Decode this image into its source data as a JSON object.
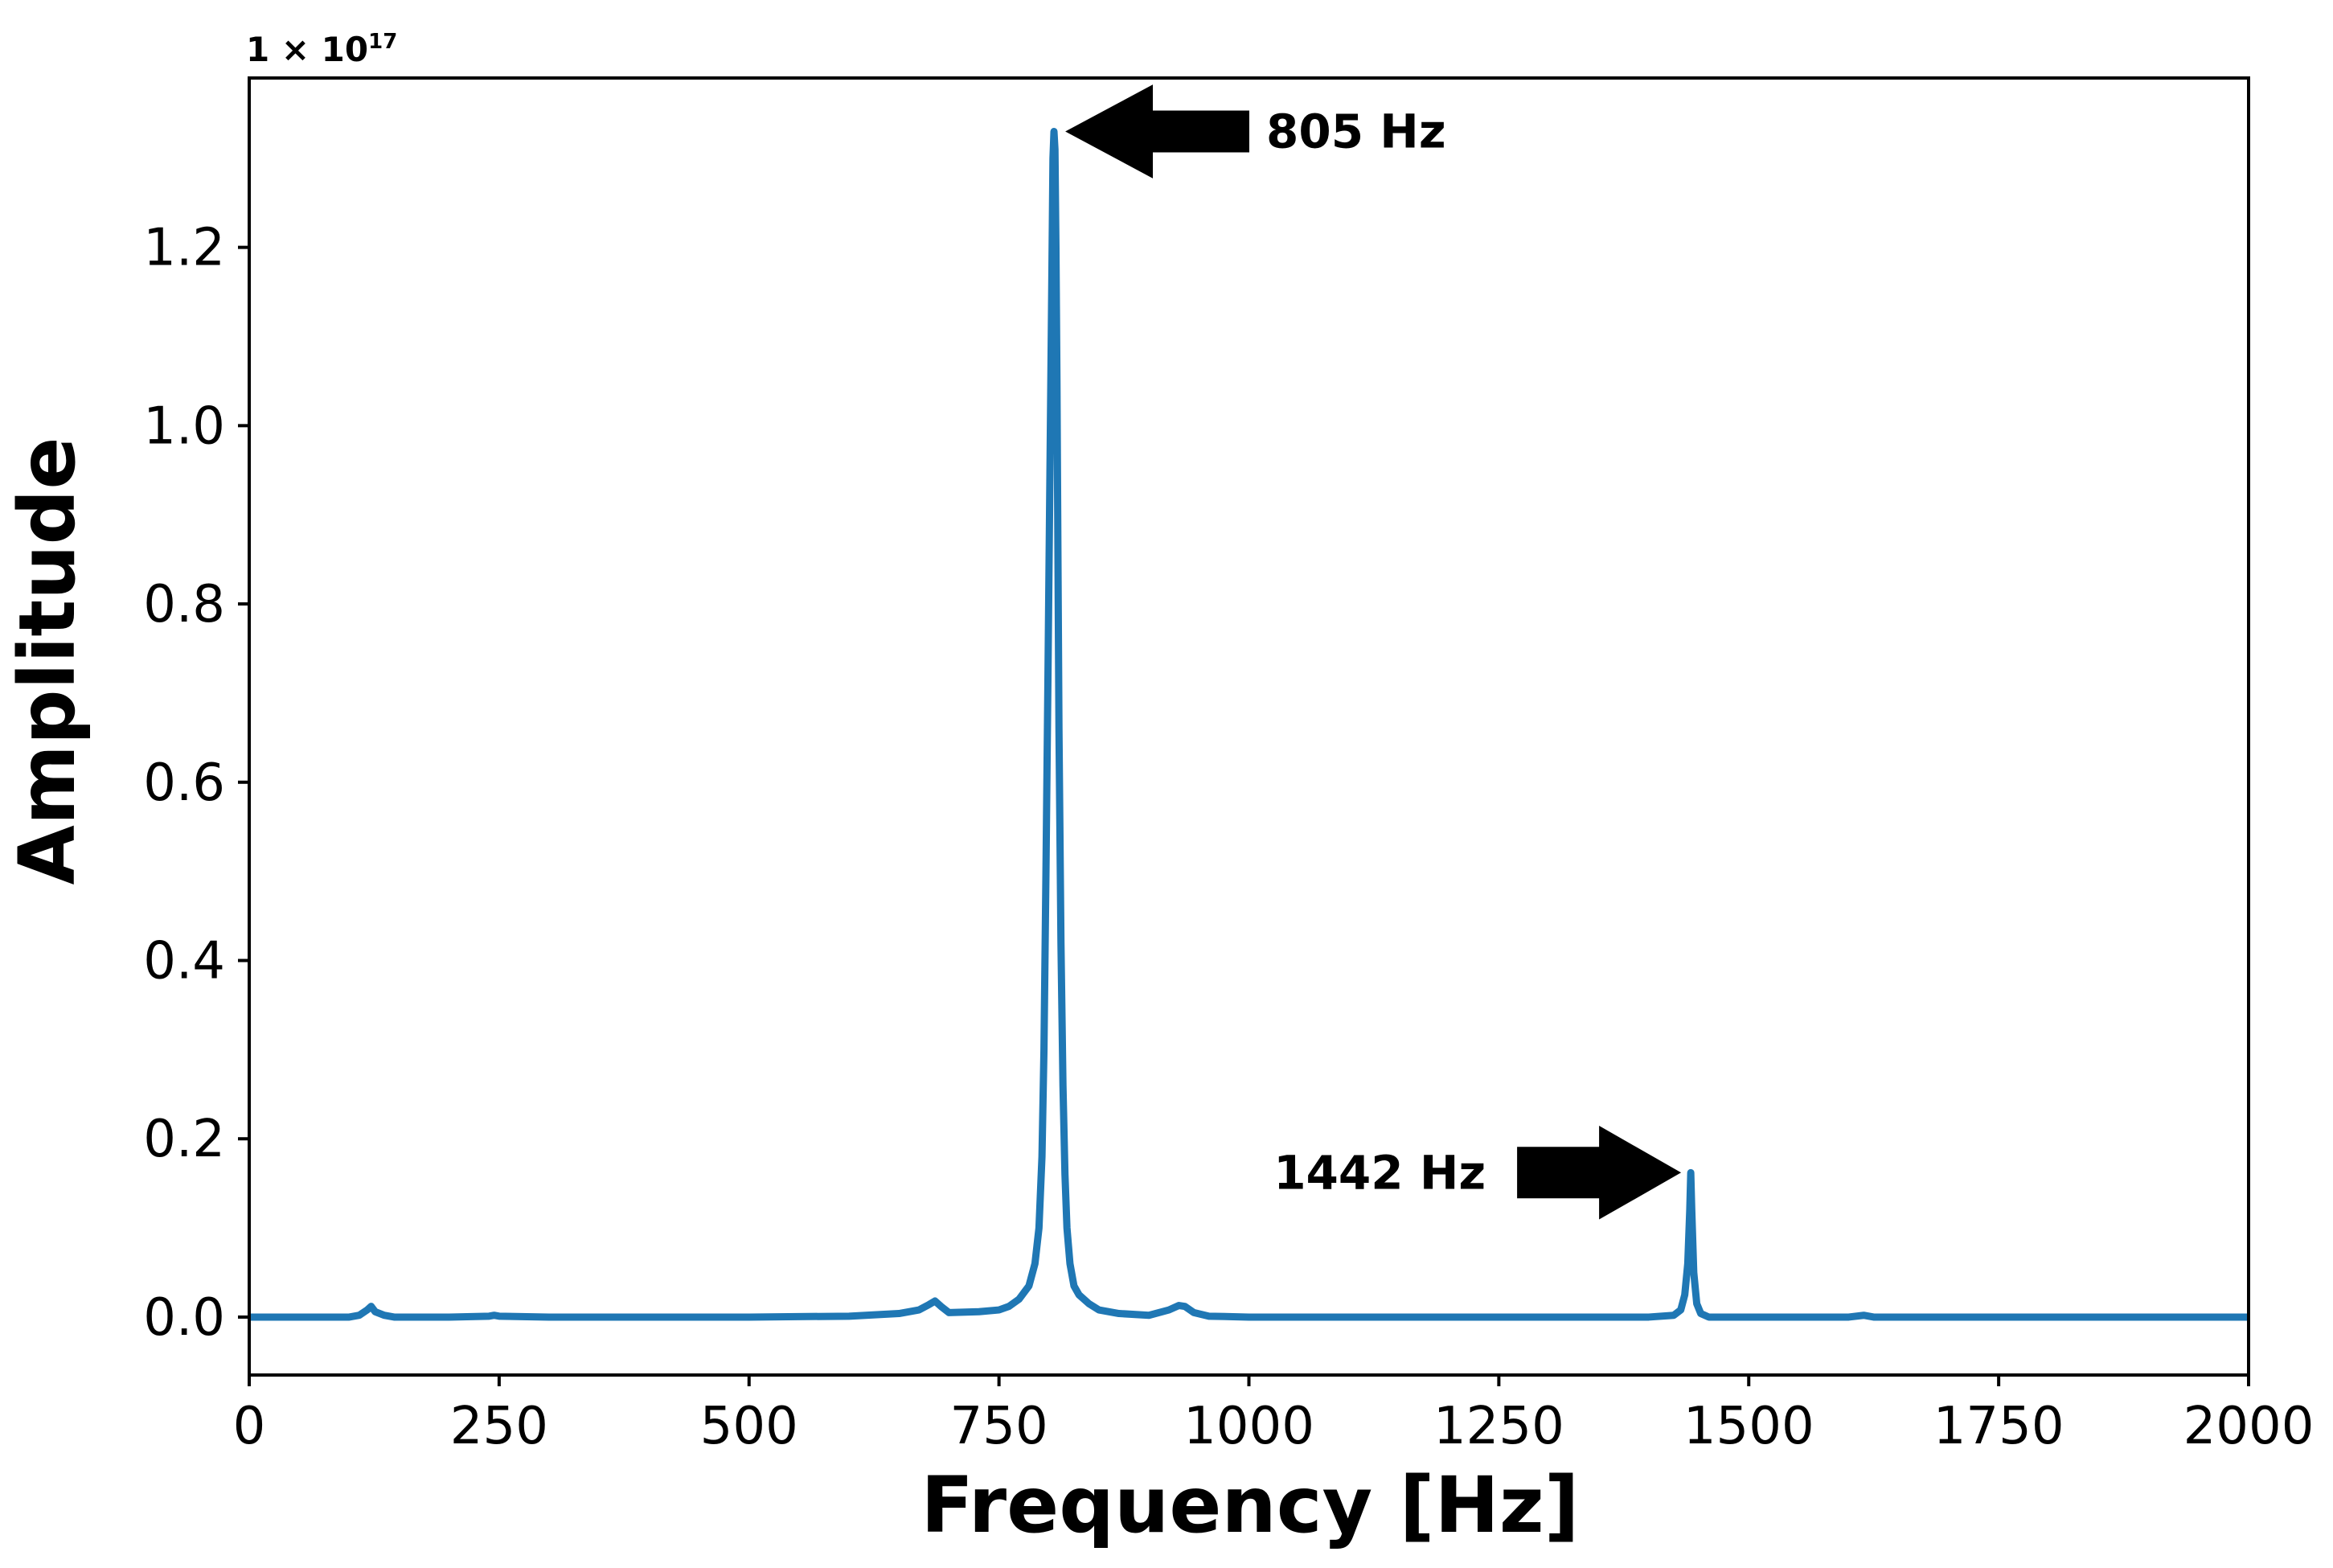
{
  "chart_data": {
    "type": "line",
    "title": "",
    "xlabel": "Frequency [Hz]",
    "ylabel": "Amplitude",
    "xlim": [
      0,
      2000
    ],
    "ylim": [
      -0.065,
      1.39
    ],
    "y_scale_factor": "1e17",
    "y_offset_text": {
      "base": "1 × 10",
      "exponent": "17"
    },
    "xticks": [
      0,
      250,
      500,
      750,
      1000,
      1250,
      1500,
      1750,
      2000
    ],
    "xtick_labels": [
      "0",
      "250",
      "500",
      "750",
      "1000",
      "1250",
      "1500",
      "1750",
      "2000"
    ],
    "yticks": [
      0.0,
      0.2,
      0.4,
      0.6,
      0.8,
      1.0,
      1.2
    ],
    "ytick_labels": [
      "0.0",
      "0.2",
      "0.4",
      "0.6",
      "0.8",
      "1.0",
      "1.2"
    ],
    "grid": false,
    "legend": "none",
    "series": [
      {
        "color": "#1f77b4",
        "x": [
          0,
          100,
          110,
          118,
          122,
          126,
          135,
          145,
          200,
          240,
          245,
          250,
          300,
          400,
          500,
          600,
          650,
          670,
          680,
          686,
          692,
          700,
          730,
          750,
          760,
          770,
          780,
          786,
          790,
          793,
          795,
          797,
          799,
          801,
          803,
          804,
          805,
          806,
          807,
          808,
          809,
          810,
          812,
          814,
          816,
          818,
          821,
          825,
          830,
          840,
          850,
          870,
          900,
          920,
          930,
          936,
          945,
          960,
          1000,
          1100,
          1200,
          1300,
          1400,
          1425,
          1432,
          1436,
          1439,
          1441,
          1442,
          1443,
          1445,
          1448,
          1452,
          1460,
          1500,
          1600,
          1615,
          1625,
          1700,
          1800,
          1900,
          2000
        ],
        "y": [
          0.0,
          0.0,
          0.002,
          0.008,
          0.012,
          0.006,
          0.002,
          0.0,
          0.0,
          0.001,
          0.002,
          0.001,
          0.0,
          0.0,
          0.0,
          0.001,
          0.004,
          0.008,
          0.014,
          0.018,
          0.012,
          0.005,
          0.006,
          0.008,
          0.012,
          0.02,
          0.035,
          0.06,
          0.1,
          0.18,
          0.3,
          0.5,
          0.72,
          0.95,
          1.18,
          1.3,
          1.33,
          1.31,
          1.2,
          1.05,
          0.85,
          0.66,
          0.42,
          0.26,
          0.16,
          0.1,
          0.06,
          0.035,
          0.025,
          0.015,
          0.008,
          0.004,
          0.002,
          0.008,
          0.013,
          0.012,
          0.005,
          0.001,
          0.0,
          0.0,
          0.0,
          0.0,
          0.0,
          0.002,
          0.008,
          0.025,
          0.06,
          0.12,
          0.162,
          0.12,
          0.05,
          0.015,
          0.004,
          0.0,
          0.0,
          0.0,
          0.002,
          0.0,
          0.0,
          0.0,
          0.0,
          0.0
        ]
      }
    ],
    "annotations": [
      {
        "text": "805 Hz",
        "x": 805,
        "y": 1.33,
        "direction": "left"
      },
      {
        "text": "1442 Hz",
        "x": 1442,
        "y": 0.162,
        "direction": "right"
      }
    ]
  }
}
